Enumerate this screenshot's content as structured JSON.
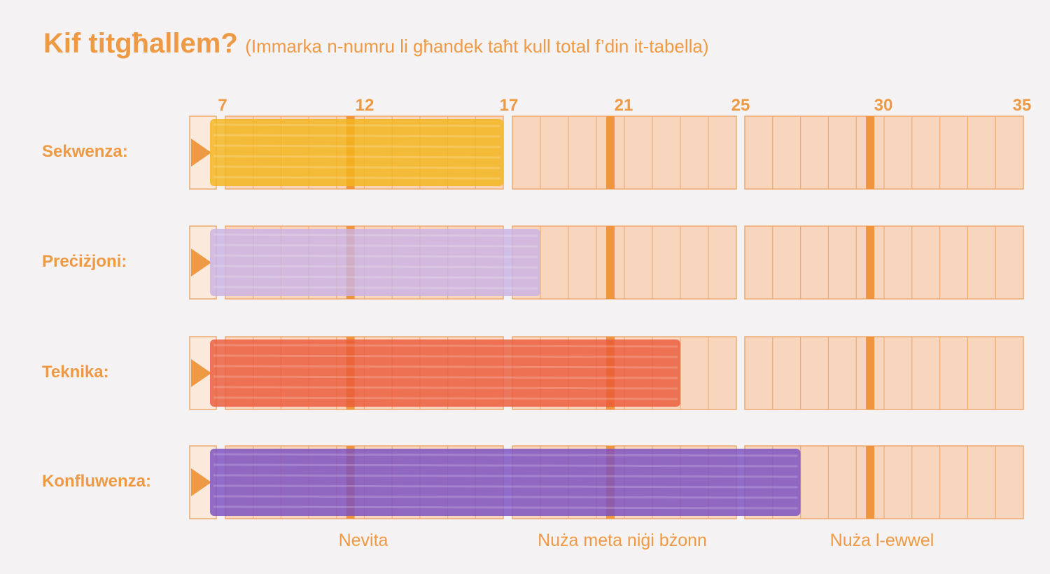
{
  "title": {
    "main": "Kif titgħallem?",
    "subtitle": "(Immarka n-numru li għandek taħt kull total f’din it-tabella)"
  },
  "scale": [
    "7",
    "12",
    "17",
    "21",
    "25",
    "30",
    "35"
  ],
  "rows": [
    {
      "label": "Sekwenza:",
      "score": 17,
      "color": "#f3b51c"
    },
    {
      "label": "Preċiżjoni:",
      "score": 18,
      "color": "#c9b2e4"
    },
    {
      "label": "Teknika:",
      "score": 23,
      "color": "#ea5a3a"
    },
    {
      "label": "Konfluwenza:",
      "score": 27,
      "color": "#7a4fc2"
    }
  ],
  "captions": [
    "Nevita",
    "Nuża meta niġi bżonn",
    "Nuża l-ewwel"
  ],
  "colors": {
    "accent": "#ee9a45",
    "cell_fill": "#f8d6be",
    "cell_border": "#ecaa70",
    "marker": "#ee9a45"
  }
}
